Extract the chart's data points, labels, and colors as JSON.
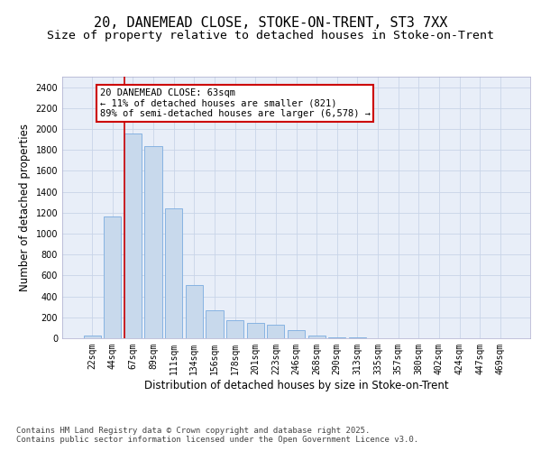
{
  "title_line1": "20, DANEMEAD CLOSE, STOKE-ON-TRENT, ST3 7XX",
  "title_line2": "Size of property relative to detached houses in Stoke-on-Trent",
  "xlabel": "Distribution of detached houses by size in Stoke-on-Trent",
  "ylabel": "Number of detached properties",
  "categories": [
    "22sqm",
    "44sqm",
    "67sqm",
    "89sqm",
    "111sqm",
    "134sqm",
    "156sqm",
    "178sqm",
    "201sqm",
    "223sqm",
    "246sqm",
    "268sqm",
    "290sqm",
    "313sqm",
    "335sqm",
    "357sqm",
    "380sqm",
    "402sqm",
    "424sqm",
    "447sqm",
    "469sqm"
  ],
  "values": [
    30,
    1160,
    1960,
    1840,
    1240,
    505,
    270,
    170,
    145,
    130,
    75,
    28,
    10,
    7,
    4,
    3,
    2,
    2,
    1,
    1,
    1
  ],
  "bar_color": "#c8d9ec",
  "bar_edge_color": "#7aace0",
  "vline_color": "#cc0000",
  "annotation_text": "20 DANEMEAD CLOSE: 63sqm\n← 11% of detached houses are smaller (821)\n89% of semi-detached houses are larger (6,578) →",
  "annotation_box_color": "#ffffff",
  "annotation_box_edge": "#cc0000",
  "ylim": [
    0,
    2500
  ],
  "yticks": [
    0,
    200,
    400,
    600,
    800,
    1000,
    1200,
    1400,
    1600,
    1800,
    2000,
    2200,
    2400
  ],
  "grid_color": "#c8d4e8",
  "background_color": "#e8eef8",
  "fig_background": "#ffffff",
  "footer_text": "Contains HM Land Registry data © Crown copyright and database right 2025.\nContains public sector information licensed under the Open Government Licence v3.0.",
  "title_fontsize": 11,
  "subtitle_fontsize": 9.5,
  "label_fontsize": 8.5,
  "tick_fontsize": 7,
  "footer_fontsize": 6.5,
  "annot_fontsize": 7.5
}
